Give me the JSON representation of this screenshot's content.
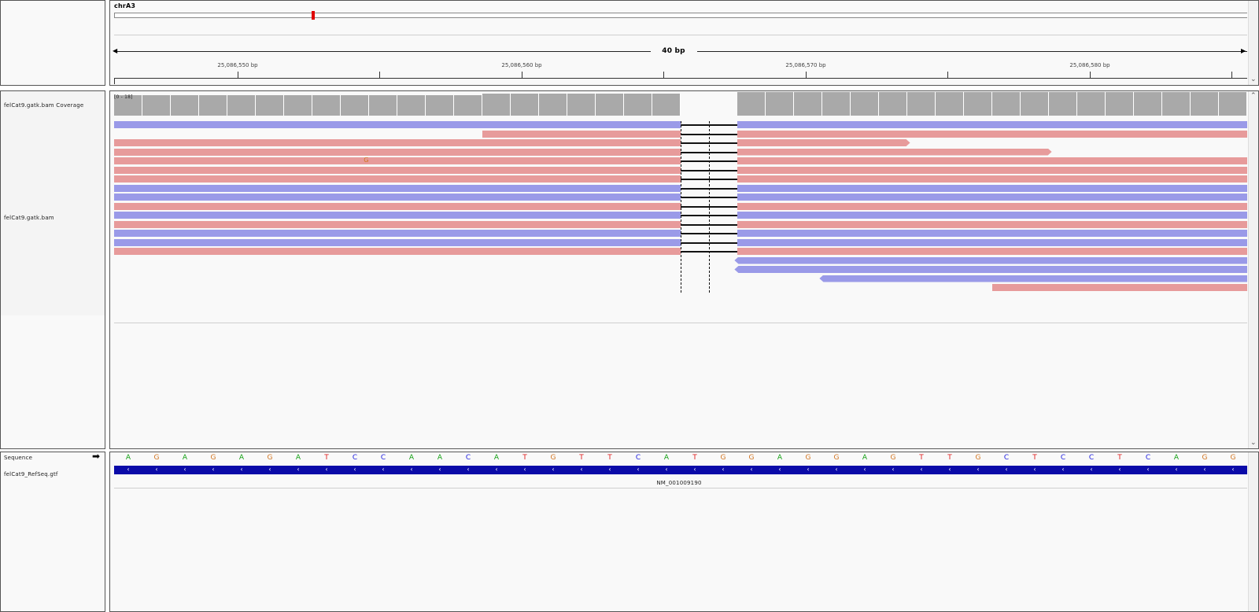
{
  "header": {
    "chromosome": "chrA3",
    "span_label": "40 bp",
    "ticks": [
      {
        "label": "25,086,550 bp"
      },
      {
        "label": "25,086,560 bp"
      },
      {
        "label": "25,086,570 bp"
      },
      {
        "label": "25,086,580 bp"
      }
    ]
  },
  "tracks": {
    "coverage_name": "felCat9.gatk.bam Coverage",
    "coverage_range": "[0 - 18]",
    "bam_name": "felCat9.gatk.bam",
    "mismatch_base": "G",
    "sequence_name": "Sequence",
    "gene_track_name": "felCat9_RefSeq.gtf",
    "gene_name": "NM_001009190"
  },
  "sequence": [
    "A",
    "G",
    "A",
    "G",
    "A",
    "G",
    "A",
    "T",
    "C",
    "C",
    "A",
    "A",
    "C",
    "A",
    "T",
    "G",
    "T",
    "T",
    "C",
    "A",
    "T",
    "G",
    "G",
    "A",
    "G",
    "G",
    "A",
    "G",
    "T",
    "T",
    "G",
    "C",
    "T",
    "C",
    "C",
    "T",
    "C",
    "A",
    "G",
    "G"
  ],
  "colors": {
    "A": "#12a012",
    "G": "#d1731d",
    "T": "#e01b1b",
    "C": "#1a1ae0",
    "forward_read": "#9a9ae8",
    "reverse_read": "#e79b9b",
    "coverage": "#a9a9a9",
    "gene": "#0a0aa8",
    "locus_marker": "#e00000"
  }
}
